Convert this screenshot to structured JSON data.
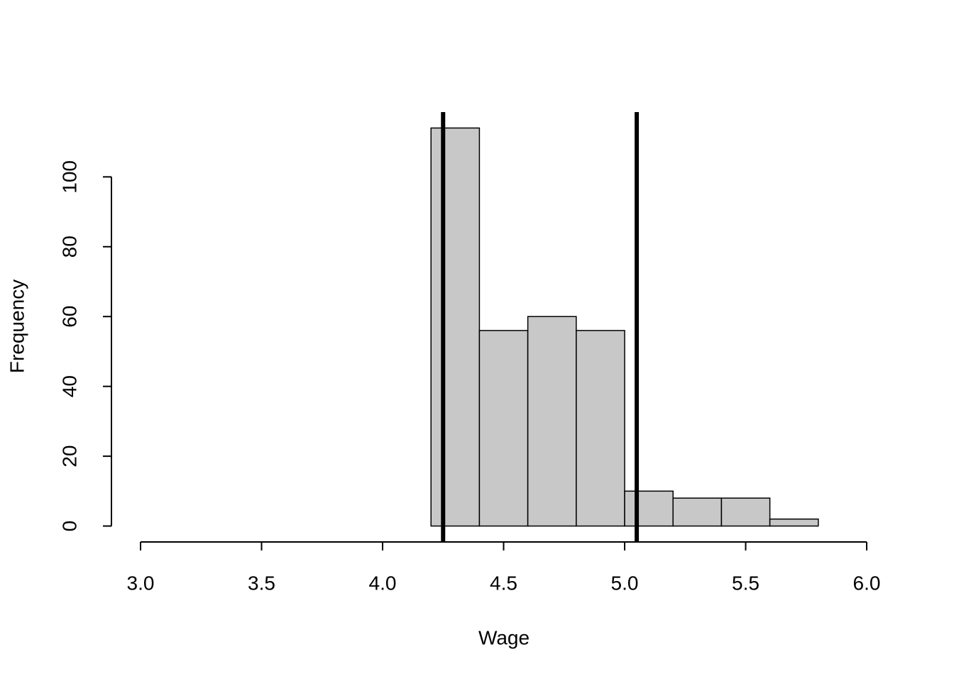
{
  "chart_data": {
    "type": "histogram",
    "xlabel": "Wage",
    "ylabel": "Frequency",
    "bins": [
      4.2,
      4.4,
      4.6,
      4.8,
      5.0,
      5.2,
      5.4,
      5.6,
      5.8
    ],
    "values": [
      114,
      56,
      60,
      56,
      10,
      8,
      8,
      2
    ],
    "color": "#c8c8c8",
    "vlines": [
      4.25,
      5.05
    ],
    "xlim": [
      3.0,
      6.0
    ],
    "xticks": [
      {
        "value": 3,
        "label": "3.0"
      },
      3.5,
      {
        "value": 4,
        "label": "4.0"
      },
      4.5,
      {
        "value": 5,
        "label": "5.0"
      },
      5.5,
      {
        "value": 6,
        "label": "6.0"
      }
    ],
    "ylim": [
      -4.56,
      118.56
    ],
    "yticks": [
      0,
      20,
      40,
      60,
      80,
      100
    ]
  }
}
